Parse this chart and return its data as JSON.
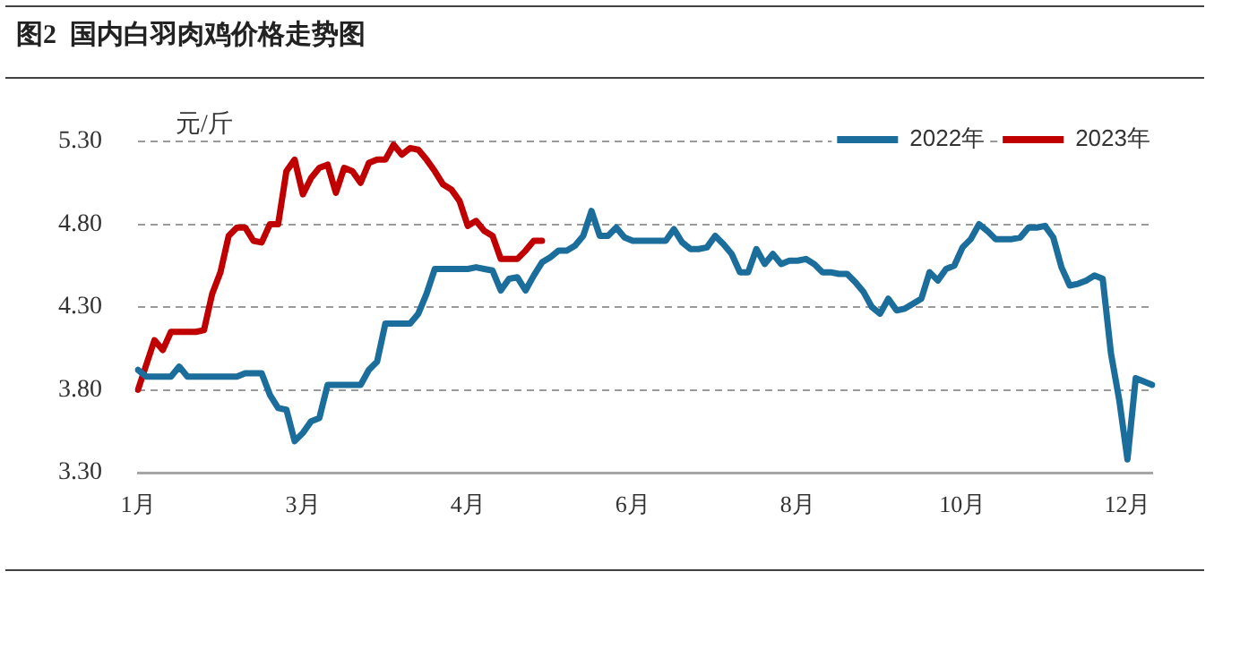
{
  "chart_data": {
    "type": "line",
    "title": "图2  国内白羽肉鸡价格走势图",
    "ylabel": "元/斤",
    "categories": [
      "1月",
      null,
      null,
      null,
      null,
      null,
      null,
      null,
      null,
      null,
      null,
      null,
      null,
      null,
      null,
      null,
      null,
      null,
      null,
      null,
      "3月",
      null,
      null,
      null,
      null,
      null,
      null,
      null,
      null,
      null,
      null,
      null,
      null,
      null,
      null,
      null,
      null,
      null,
      null,
      null,
      "4月",
      null,
      null,
      null,
      null,
      null,
      null,
      null,
      null,
      null,
      null,
      null,
      null,
      null,
      null,
      null,
      null,
      null,
      null,
      null,
      "6月",
      null,
      null,
      null,
      null,
      null,
      null,
      null,
      null,
      null,
      null,
      null,
      null,
      null,
      null,
      null,
      null,
      null,
      null,
      null,
      "8月",
      null,
      null,
      null,
      null,
      null,
      null,
      null,
      null,
      null,
      null,
      null,
      null,
      null,
      null,
      null,
      null,
      null,
      null,
      null,
      "10月",
      null,
      null,
      null,
      null,
      null,
      null,
      null,
      null,
      null,
      null,
      null,
      null,
      null,
      null,
      null,
      null,
      null,
      null,
      null,
      "12月",
      null,
      null,
      null
    ],
    "ylim": [
      3.3,
      5.3
    ],
    "yticks": [
      {
        "value": 3.3,
        "label": "3.30"
      },
      {
        "value": 3.8,
        "label": "3.80"
      },
      {
        "value": 4.3,
        "label": "4.30"
      },
      {
        "value": 4.8,
        "label": "4.80"
      },
      {
        "value": 5.3,
        "label": "5.30"
      }
    ],
    "grid": "y",
    "legend": "top right",
    "series": [
      {
        "name": "2022年",
        "color": "#1b6e9b",
        "values": [
          3.92,
          3.88,
          3.88,
          3.88,
          3.88,
          3.94,
          3.88,
          3.88,
          3.88,
          3.88,
          3.88,
          3.88,
          3.88,
          3.9,
          3.9,
          3.9,
          3.77,
          3.69,
          3.68,
          3.49,
          3.54,
          3.61,
          3.63,
          3.83,
          3.83,
          3.83,
          3.83,
          3.83,
          3.92,
          3.97,
          4.2,
          4.2,
          4.2,
          4.2,
          4.26,
          4.38,
          4.53,
          4.53,
          4.53,
          4.53,
          4.53,
          4.54,
          4.53,
          4.52,
          4.4,
          4.47,
          4.48,
          4.4,
          4.49,
          4.57,
          4.6,
          4.64,
          4.64,
          4.67,
          4.73,
          4.88,
          4.73,
          4.73,
          4.78,
          4.72,
          4.7,
          4.7,
          4.7,
          4.7,
          4.7,
          4.77,
          4.69,
          4.65,
          4.65,
          4.66,
          4.73,
          4.68,
          4.62,
          4.51,
          4.51,
          4.65,
          4.56,
          4.62,
          4.56,
          4.58,
          4.58,
          4.59,
          4.56,
          4.51,
          4.51,
          4.5,
          4.5,
          4.45,
          4.39,
          4.3,
          4.26,
          4.35,
          4.28,
          4.29,
          4.32,
          4.35,
          4.51,
          4.46,
          4.53,
          4.55,
          4.66,
          4.71,
          4.8,
          4.76,
          4.71,
          4.71,
          4.71,
          4.72,
          4.78,
          4.78,
          4.79,
          4.72,
          4.54,
          4.43,
          4.44,
          4.46,
          4.49,
          4.47,
          4.02,
          3.74,
          3.38,
          3.87,
          3.85,
          3.83
        ]
      },
      {
        "name": "2023年",
        "color": "#c00000",
        "values": [
          3.8,
          3.95,
          4.1,
          4.04,
          4.15,
          4.15,
          4.15,
          4.15,
          4.16,
          4.38,
          4.51,
          4.73,
          4.78,
          4.78,
          4.7,
          4.69,
          4.8,
          4.8,
          5.12,
          5.19,
          4.98,
          5.08,
          5.14,
          5.16,
          4.99,
          5.14,
          5.12,
          5.05,
          5.17,
          5.19,
          5.19,
          5.28,
          5.22,
          5.26,
          5.25,
          5.19,
          5.12,
          5.04,
          5.01,
          4.94,
          4.79,
          4.82,
          4.76,
          4.73,
          4.59,
          4.59,
          4.59,
          4.64,
          4.7,
          4.7,
          null,
          null,
          null,
          null,
          null,
          null,
          null,
          null,
          null,
          null,
          null,
          null,
          null,
          null,
          null,
          null,
          null,
          null,
          null,
          null,
          null,
          null,
          null,
          null,
          null,
          null,
          null,
          null,
          null,
          null,
          null,
          null,
          null,
          null,
          null,
          null,
          null,
          null,
          null,
          null,
          null,
          null,
          null,
          null,
          null,
          null,
          null,
          null,
          null,
          null,
          null,
          null,
          null,
          null,
          null,
          null,
          null,
          null,
          null,
          null,
          null,
          null,
          null,
          null,
          null,
          null,
          null,
          null,
          null,
          null,
          null,
          null,
          null,
          null
        ]
      }
    ]
  }
}
